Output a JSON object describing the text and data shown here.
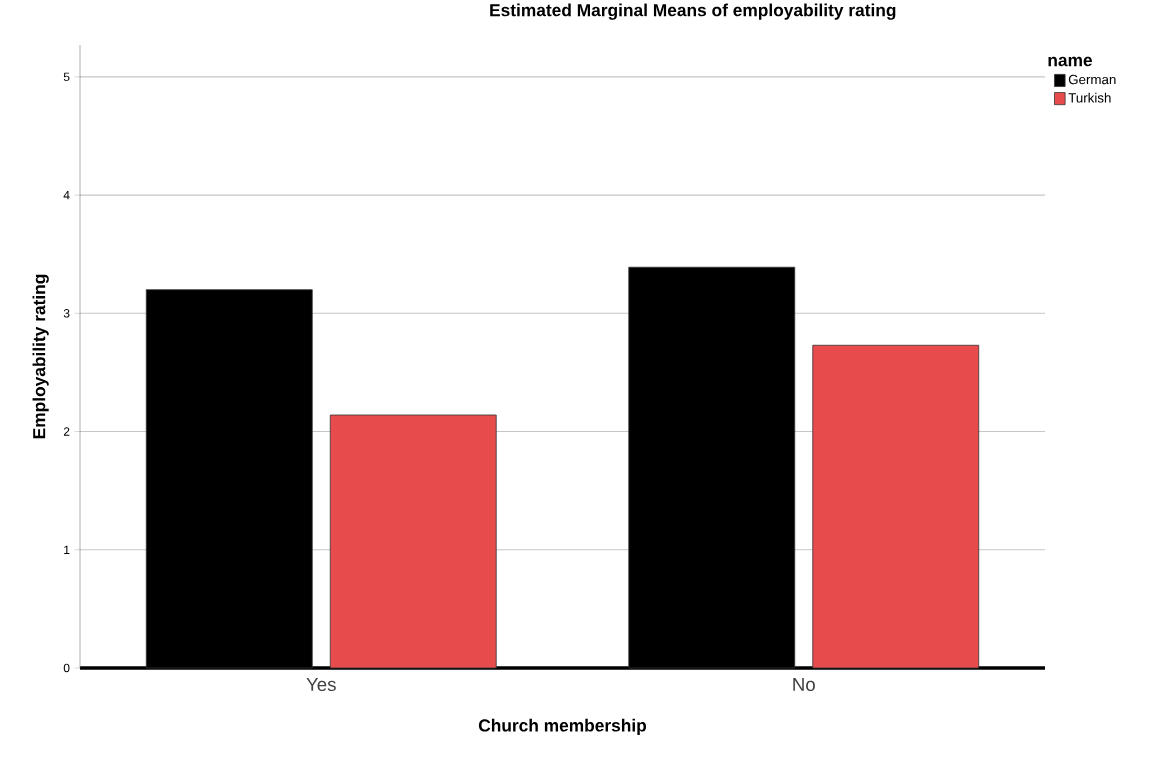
{
  "chart_data": {
    "type": "bar",
    "title": "Estimated Marginal Means of employability rating",
    "xlabel": "Church membership",
    "ylabel": "Employability rating",
    "legend_title": "name",
    "categories": [
      "Yes",
      "No"
    ],
    "series": [
      {
        "name": "German",
        "color": "#000000",
        "values": [
          3.2,
          3.39
        ]
      },
      {
        "name": "Turkish",
        "color": "#e84b4b",
        "values": [
          2.14,
          2.73
        ]
      }
    ],
    "ylim": [
      0,
      5.27
    ],
    "yticks": [
      0,
      1,
      2,
      3,
      4,
      5
    ],
    "grid": "y",
    "legend": "top right"
  }
}
